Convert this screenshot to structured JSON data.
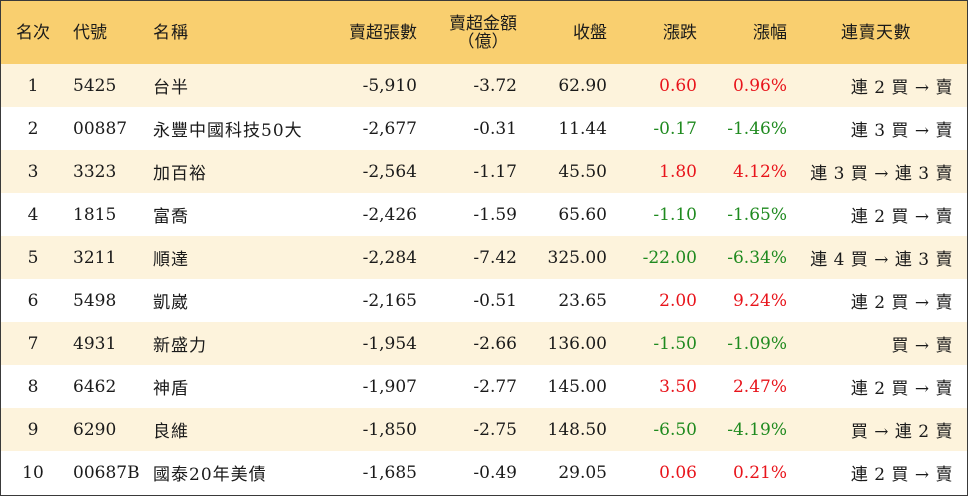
{
  "colors": {
    "header_bg": "#f9cf6f",
    "odd_row_bg": "#fdf3dc",
    "even_row_bg": "#ffffff",
    "up": "#e8141b",
    "down": "#1f8a1f"
  },
  "headers": {
    "rank": "名次",
    "code": "代號",
    "name": "名稱",
    "net_sell_shares": "賣超張數",
    "net_sell_amount_line1": "賣超金額",
    "net_sell_amount_line2": "（億）",
    "close": "收盤",
    "change": "漲跌",
    "change_pct": "漲幅",
    "streak": "連賣天數"
  },
  "rows": [
    {
      "rank": "1",
      "code": "5425",
      "name": "台半",
      "net_sell_shares": "-5,910",
      "net_sell_amount": "-3.72",
      "close": "62.90",
      "change": "0.60",
      "change_pct": "0.96%",
      "direction": "up",
      "streak": "連 2 買 → 賣"
    },
    {
      "rank": "2",
      "code": "00887",
      "name": "永豐中國科技50大",
      "net_sell_shares": "-2,677",
      "net_sell_amount": "-0.31",
      "close": "11.44",
      "change": "-0.17",
      "change_pct": "-1.46%",
      "direction": "down",
      "streak": "連 3 買 → 賣"
    },
    {
      "rank": "3",
      "code": "3323",
      "name": "加百裕",
      "net_sell_shares": "-2,564",
      "net_sell_amount": "-1.17",
      "close": "45.50",
      "change": "1.80",
      "change_pct": "4.12%",
      "direction": "up",
      "streak": "連 3 買 → 連 3 賣"
    },
    {
      "rank": "4",
      "code": "1815",
      "name": "富喬",
      "net_sell_shares": "-2,426",
      "net_sell_amount": "-1.59",
      "close": "65.60",
      "change": "-1.10",
      "change_pct": "-1.65%",
      "direction": "down",
      "streak": "連 2 買 → 賣"
    },
    {
      "rank": "5",
      "code": "3211",
      "name": "順達",
      "net_sell_shares": "-2,284",
      "net_sell_amount": "-7.42",
      "close": "325.00",
      "change": "-22.00",
      "change_pct": "-6.34%",
      "direction": "down",
      "streak": "連 4 買 → 連 3 賣"
    },
    {
      "rank": "6",
      "code": "5498",
      "name": "凱崴",
      "net_sell_shares": "-2,165",
      "net_sell_amount": "-0.51",
      "close": "23.65",
      "change": "2.00",
      "change_pct": "9.24%",
      "direction": "up",
      "streak": "連 2 買 → 賣"
    },
    {
      "rank": "7",
      "code": "4931",
      "name": "新盛力",
      "net_sell_shares": "-1,954",
      "net_sell_amount": "-2.66",
      "close": "136.00",
      "change": "-1.50",
      "change_pct": "-1.09%",
      "direction": "down",
      "streak": "買 → 賣"
    },
    {
      "rank": "8",
      "code": "6462",
      "name": "神盾",
      "net_sell_shares": "-1,907",
      "net_sell_amount": "-2.77",
      "close": "145.00",
      "change": "3.50",
      "change_pct": "2.47%",
      "direction": "up",
      "streak": "連 2 買 → 賣"
    },
    {
      "rank": "9",
      "code": "6290",
      "name": "良維",
      "net_sell_shares": "-1,850",
      "net_sell_amount": "-2.75",
      "close": "148.50",
      "change": "-6.50",
      "change_pct": "-4.19%",
      "direction": "down",
      "streak": "買 → 連 2 賣"
    },
    {
      "rank": "10",
      "code": "00687B",
      "name": "國泰20年美債",
      "net_sell_shares": "-1,685",
      "net_sell_amount": "-0.49",
      "close": "29.05",
      "change": "0.06",
      "change_pct": "0.21%",
      "direction": "up",
      "streak": "連 2 買 → 賣"
    }
  ]
}
